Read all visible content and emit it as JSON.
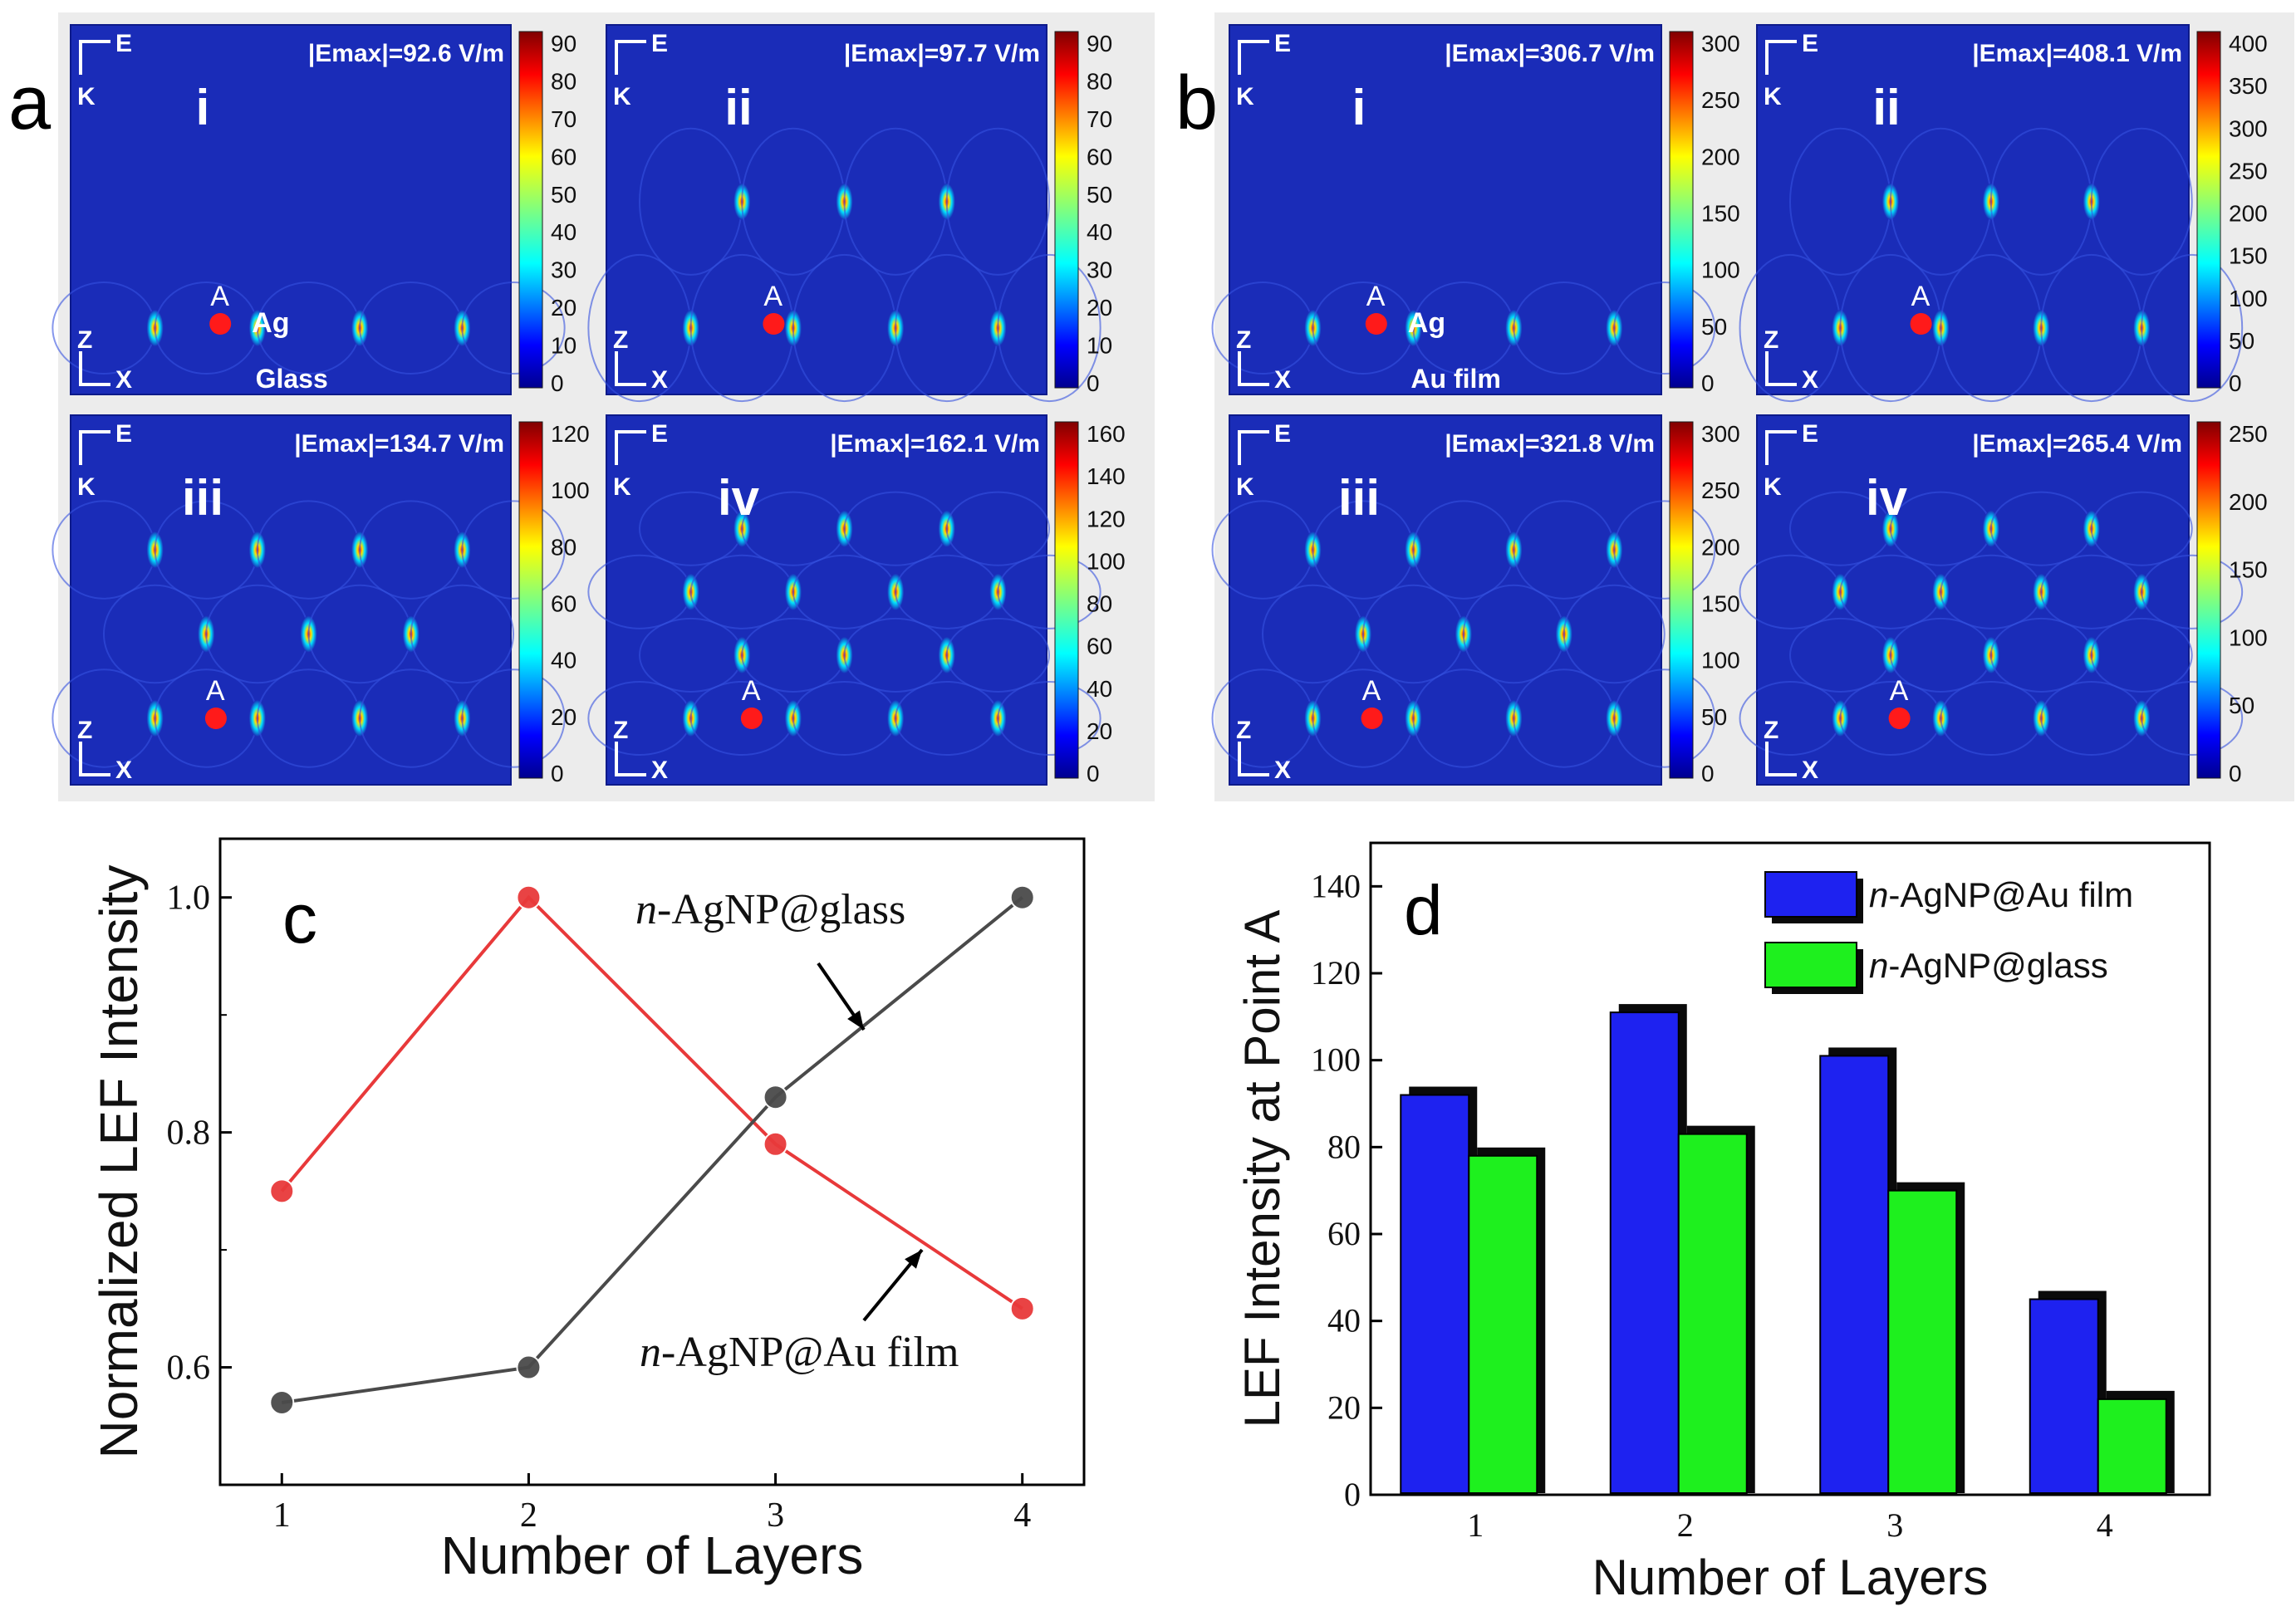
{
  "figure": {
    "colors": {
      "map_bg": "#1a2cb8",
      "panel_frame": "#0d1a8a",
      "hotspot_red": "#ff1a1a",
      "red_series": "#e8393a",
      "gray_series": "#4a4a4a",
      "bar_blue": "#1e22f0",
      "bar_green": "#1ef01e",
      "bar_shadow": "#0a0a0a"
    }
  },
  "panel_a": {
    "label": "a",
    "maps": [
      {
        "roman": "i",
        "emax": "|Emax|=92.6 V/m",
        "colorbar_ticks": [
          "90",
          "80",
          "70",
          "60",
          "50",
          "40",
          "30",
          "20",
          "10",
          "0"
        ],
        "layers": 1,
        "labels": {
          "point": "A",
          "particle": "Ag",
          "substrate": "Glass"
        }
      },
      {
        "roman": "ii",
        "emax": "|Emax|=97.7 V/m",
        "colorbar_ticks": [
          "90",
          "80",
          "70",
          "60",
          "50",
          "40",
          "30",
          "20",
          "10",
          "0"
        ],
        "layers": 2,
        "labels": {
          "point": "A"
        }
      },
      {
        "roman": "iii",
        "emax": "|Emax|=134.7 V/m",
        "colorbar_ticks": [
          "120",
          "100",
          "80",
          "60",
          "40",
          "20",
          "0"
        ],
        "layers": 3,
        "labels": {
          "point": "A"
        }
      },
      {
        "roman": "iv",
        "emax": "|Emax|=162.1 V/m",
        "colorbar_ticks": [
          "160",
          "140",
          "120",
          "100",
          "80",
          "60",
          "40",
          "20",
          "0"
        ],
        "layers": 4,
        "labels": {
          "point": "A"
        }
      }
    ]
  },
  "panel_b": {
    "label": "b",
    "maps": [
      {
        "roman": "i",
        "emax": "|Emax|=306.7 V/m",
        "colorbar_ticks": [
          "300",
          "250",
          "200",
          "150",
          "100",
          "50",
          "0"
        ],
        "layers": 1,
        "labels": {
          "point": "A",
          "particle": "Ag",
          "substrate": "Au film"
        }
      },
      {
        "roman": "ii",
        "emax": "|Emax|=408.1 V/m",
        "colorbar_ticks": [
          "400",
          "350",
          "300",
          "250",
          "200",
          "150",
          "100",
          "50",
          "0"
        ],
        "layers": 2,
        "labels": {
          "point": "A"
        }
      },
      {
        "roman": "iii",
        "emax": "|Emax|=321.8 V/m",
        "colorbar_ticks": [
          "300",
          "250",
          "200",
          "150",
          "100",
          "50",
          "0"
        ],
        "layers": 3,
        "labels": {
          "point": "A"
        }
      },
      {
        "roman": "iv",
        "emax": "|Emax|=265.4 V/m",
        "colorbar_ticks": [
          "250",
          "200",
          "150",
          "100",
          "50",
          "0"
        ],
        "layers": 4,
        "labels": {
          "point": "A"
        }
      }
    ]
  },
  "axes_labels": {
    "E": "E",
    "K": "K",
    "Z": "Z",
    "X": "X"
  },
  "chart_data": [
    {
      "panel": "c",
      "type": "line",
      "xlabel": "Number of Layers",
      "ylabel": "Normalized LEF Intensity",
      "x": [
        1,
        2,
        3,
        4
      ],
      "xlim": [
        0.75,
        4.25
      ],
      "ylim": [
        0.5,
        1.05
      ],
      "xticks": [
        1,
        2,
        3,
        4
      ],
      "yticks": [
        0.6,
        0.8,
        1.0
      ],
      "ytick_labels": [
        "0.6",
        "0.8",
        "1.0"
      ],
      "series": [
        {
          "name": "n-AgNP@Au film",
          "prefix": "n",
          "suffix": "-AgNP@Au film",
          "color": "#e8393a",
          "values": [
            0.75,
            1.0,
            0.79,
            0.65
          ]
        },
        {
          "name": "n-AgNP@glass",
          "prefix": "n",
          "suffix": "-AgNP@glass",
          "color": "#4a4a4a",
          "values": [
            0.57,
            0.6,
            0.83,
            1.0
          ]
        }
      ]
    },
    {
      "panel": "d",
      "type": "bar",
      "xlabel": "Number of Layers",
      "ylabel": "LEF Intensity at Point A",
      "categories": [
        "1",
        "2",
        "3",
        "4"
      ],
      "ylim": [
        0,
        150
      ],
      "yticks": [
        0,
        20,
        40,
        60,
        80,
        100,
        120,
        140
      ],
      "legend_position": "top-right",
      "series": [
        {
          "name": "n-AgNP@Au film",
          "prefix": "n",
          "suffix": "-AgNP@Au film",
          "color": "#1e22f0",
          "values": [
            92,
            111,
            101,
            45
          ]
        },
        {
          "name": "n-AgNP@glass",
          "prefix": "n",
          "suffix": "-AgNP@glass",
          "color": "#1ef01e",
          "values": [
            78,
            83,
            70,
            22
          ]
        }
      ]
    }
  ]
}
